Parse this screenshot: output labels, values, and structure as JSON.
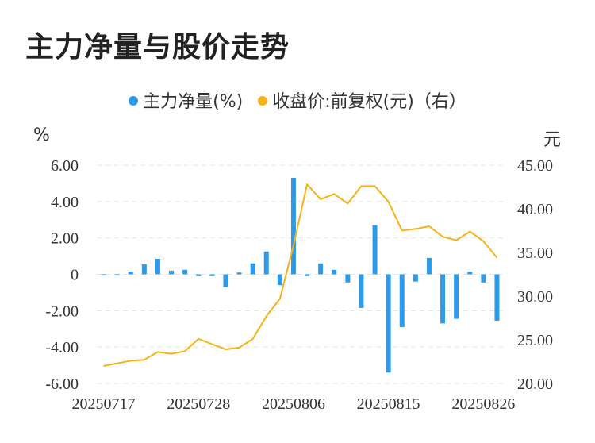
{
  "title": "主力净量与股价走势",
  "legend": {
    "bar_label": "主力净量(%)",
    "line_label": "收盘价:前复权(元)（右）",
    "bar_color": "#2E9BEA",
    "line_color": "#F5B317"
  },
  "units": {
    "left": "%",
    "right": "元"
  },
  "chart_data": {
    "type": "bar+line",
    "x": [
      "20250717",
      "20250718",
      "20250721",
      "20250722",
      "20250723",
      "20250724",
      "20250725",
      "20250728",
      "20250729",
      "20250730",
      "20250731",
      "20250801",
      "20250804",
      "20250805",
      "20250806",
      "20250807",
      "20250808",
      "20250811",
      "20250812",
      "20250813",
      "20250814",
      "20250815",
      "20250818",
      "20250819",
      "20250820",
      "20250821",
      "20250822",
      "20250825",
      "20250826",
      "20250827"
    ],
    "x_tick_labels": [
      "20250717",
      "20250728",
      "20250806",
      "20250815",
      "20250826"
    ],
    "series": [
      {
        "name": "主力净量(%)",
        "type": "bar",
        "axis": "left",
        "values": [
          -0.05,
          -0.05,
          0.15,
          0.55,
          0.85,
          0.2,
          0.25,
          -0.1,
          -0.1,
          -0.7,
          0.1,
          0.6,
          1.25,
          -0.6,
          5.3,
          -0.1,
          0.6,
          0.25,
          -0.45,
          -1.85,
          2.7,
          -5.4,
          -2.9,
          -0.4,
          0.9,
          -2.7,
          -2.45,
          0.15,
          -0.45,
          -2.55
        ]
      },
      {
        "name": "收盘价:前复权(元)（右）",
        "type": "line",
        "axis": "right",
        "values": [
          22.0,
          22.3,
          22.6,
          22.7,
          23.6,
          23.4,
          23.7,
          25.1,
          24.5,
          23.9,
          24.1,
          25.1,
          27.7,
          29.7,
          35.8,
          42.8,
          41.1,
          41.7,
          40.6,
          42.6,
          42.6,
          40.8,
          37.5,
          37.7,
          38.0,
          36.8,
          36.4,
          37.4,
          36.3,
          34.4
        ]
      }
    ],
    "y_left": {
      "ticks": [
        -6,
        -4,
        -2,
        0,
        2,
        4,
        6
      ],
      "tick_labels": [
        "-6.00",
        "-4.00",
        "-2.00",
        "0",
        "2.00",
        "4.00",
        "6.00"
      ],
      "range": [
        -6,
        6
      ]
    },
    "y_right": {
      "ticks": [
        20,
        25,
        30,
        35,
        40,
        45
      ],
      "tick_labels": [
        "20.00",
        "25.00",
        "30.00",
        "35.00",
        "40.00",
        "45.00"
      ],
      "range": [
        20,
        45
      ]
    },
    "grid": true,
    "legend_position": "top-center"
  }
}
